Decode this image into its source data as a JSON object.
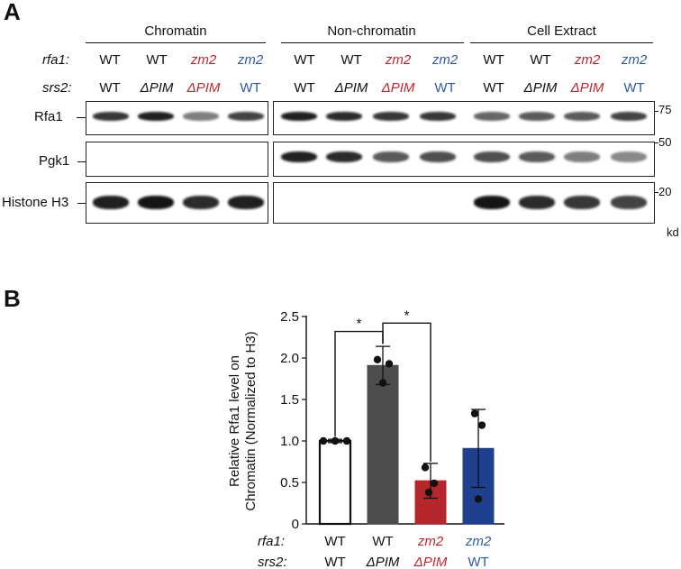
{
  "panel_a": {
    "letter": "A",
    "groups": [
      "Chromatin",
      "Non-chromatin",
      "Cell Extract"
    ],
    "row_labels": {
      "rfa1": "rfa1:",
      "srs2": "srs2:"
    },
    "lanes": [
      {
        "rfa1": "WT",
        "srs2": "WT",
        "color": "#111111"
      },
      {
        "rfa1": "WT",
        "srs2": "ΔPIM",
        "color": "#111111"
      },
      {
        "rfa1": "zm2",
        "srs2": "ΔPIM",
        "color": "#c0272d"
      },
      {
        "rfa1": "zm2",
        "srs2": "WT",
        "color": "#2e5aa8"
      }
    ],
    "blots": [
      "Rfa1",
      "Pgk1",
      "Histone H3"
    ],
    "markers": [
      "75",
      "50",
      "20"
    ],
    "unit": "kd"
  },
  "panel_b": {
    "letter": "B",
    "chart_data": {
      "type": "bar",
      "categories": [
        "WT/WT",
        "WT/ΔPIM",
        "zm2/ΔPIM",
        "zm2/WT"
      ],
      "rfa1_labels": [
        "WT",
        "WT",
        "zm2",
        "zm2"
      ],
      "srs2_labels": [
        "WT",
        "ΔPIM",
        "ΔPIM",
        "WT"
      ],
      "row_labels": {
        "rfa1": "rfa1:",
        "srs2": "srs2:"
      },
      "values": [
        1.0,
        1.91,
        0.52,
        0.91
      ],
      "errors": [
        0.02,
        0.23,
        0.21,
        0.47
      ],
      "points": [
        [
          1.0,
          1.0,
          1.0
        ],
        [
          1.98,
          1.93,
          1.7
        ],
        [
          0.68,
          0.49,
          0.38
        ],
        [
          1.33,
          1.19,
          0.3
        ]
      ],
      "colors": [
        "#ffffff",
        "#4d4d4d",
        "#b5272d",
        "#1f3f8f"
      ],
      "label_colors": [
        "#111111",
        "#111111",
        "#c0272d",
        "#2e5aa8"
      ],
      "ylabel_line1": "Relative Rfa1 level on",
      "ylabel_line2": "Chromatin (Normalized to H3)",
      "ylim": [
        0,
        2.5
      ],
      "yticks": [
        "0",
        "0.5",
        "1.0",
        "1.5",
        "2.0",
        "2.5"
      ],
      "ytick_values": [
        0,
        0.5,
        1.0,
        1.5,
        2.0,
        2.5
      ],
      "significance": [
        {
          "from": 0,
          "to": 1,
          "label": "*"
        },
        {
          "from": 1,
          "to": 2,
          "label": "*"
        }
      ]
    }
  }
}
